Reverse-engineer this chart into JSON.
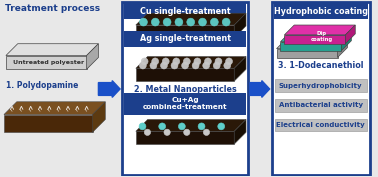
{
  "bg_color": "#e8e8e8",
  "title_text": "Treatment process",
  "step1_label": "1. Polydopamine",
  "step2_label": "2. Metal Nanoparticles",
  "step3_label": "3. 1-Dodecanethiol",
  "untreated_label": "Untreated polyester",
  "hydrophobic_title": "Hydrophobic coating",
  "cu_label": "Cu single-treatment",
  "ag_label": "Ag single-treatment",
  "cuag_label": "Cu+Ag\ncombined-treatment",
  "prop1": "Superhydrophobicity",
  "prop2": "Antibacterial activity",
  "prop3": "Electrical conductivity",
  "blue_header": "#1c3f8c",
  "blue_arrow": "#1a50c8",
  "cyan_np": "#5ecfca",
  "silver_np": "#c8c8c8",
  "magenta_slab": "#e030a8",
  "teal_slab": "#30b8a8",
  "gray_slab": "#b8b8b8",
  "prop_bg": "#c0c0c0"
}
